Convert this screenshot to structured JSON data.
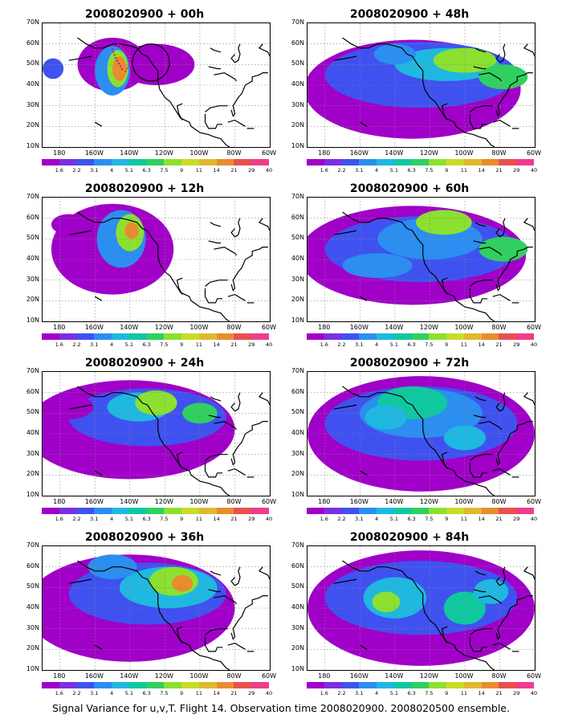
{
  "lat_labels": [
    "70N",
    "60N",
    "50N",
    "40N",
    "30N",
    "20N",
    "10N"
  ],
  "lon_labels": [
    "180",
    "160W",
    "140W",
    "120W",
    "100W",
    "80W",
    "60W"
  ],
  "colorbar": {
    "labels": [
      "1.6",
      "2.2",
      "3.1",
      "4",
      "5.1",
      "6.3",
      "7.5",
      "9",
      "11",
      "14",
      "21",
      "29",
      "40"
    ],
    "colors": [
      "#a000c8",
      "#7a30e0",
      "#3f52f0",
      "#2b8ef0",
      "#1fb8e0",
      "#10c8a0",
      "#30d060",
      "#8ce030",
      "#c8dc28",
      "#e0b830",
      "#e88c30",
      "#e85050",
      "#f03c8c"
    ]
  },
  "panels": [
    {
      "title": "2008020900 + 00h"
    },
    {
      "title": "2008020900 + 48h"
    },
    {
      "title": "2008020900 + 12h"
    },
    {
      "title": "2008020900 + 60h"
    },
    {
      "title": "2008020900 + 24h"
    },
    {
      "title": "2008020900 + 72h"
    },
    {
      "title": "2008020900 + 36h"
    },
    {
      "title": "2008020900 + 84h"
    }
  ],
  "caption": "Signal Variance for u,v,T. Flight 14. Observation time 2008020900. 2008020500 ensemble."
}
